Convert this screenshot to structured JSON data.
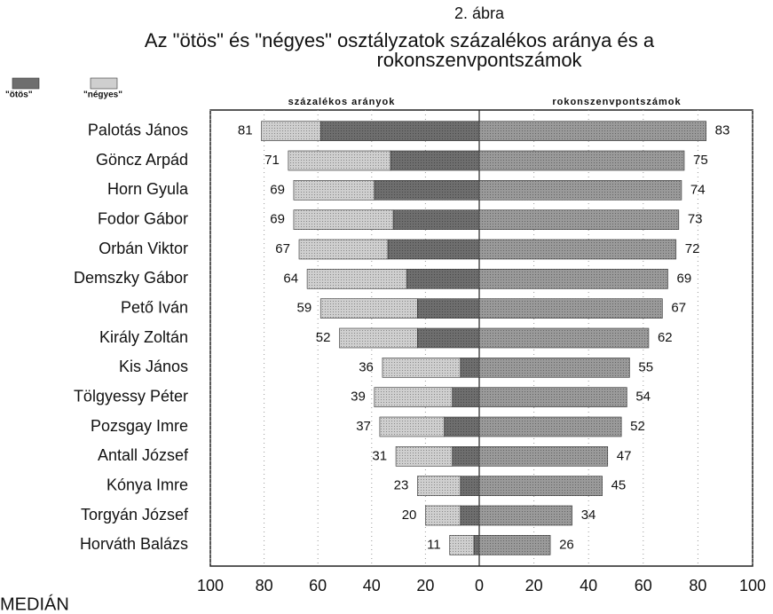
{
  "chart_data": {
    "type": "diverging_bar",
    "figure_label": "2. ábra",
    "title": [
      "Az \"ötös\" és \"négyes\" osztályzatok százalékos aránya és a",
      "rokonszenvpontszámok"
    ],
    "left_header": "százalékos arányok",
    "right_header": "rokonszenvpontszámok",
    "footer": "MEDIÁN",
    "categories": [
      "Palotás János",
      "Göncz Arpád",
      "Horn Gyula",
      "Fodor Gábor",
      "Orbán Viktor",
      "Demszky Gábor",
      "Pető Iván",
      "Király Zoltán",
      "Kis János",
      "Tölgyessy Péter",
      "Pozsgay Imre",
      "Antall József",
      "Kónya Imre",
      "Torgyán József",
      "Horváth Balázs"
    ],
    "left_series": [
      {
        "name": "\"ötös\"",
        "color": "#6e6e6e",
        "values": [
          59,
          33,
          39,
          32,
          34,
          27,
          23,
          23,
          7,
          10,
          13,
          10,
          7,
          7,
          2
        ]
      },
      {
        "name": "\"négyes\"",
        "color": "#cfcfcf",
        "values": [
          22,
          38,
          30,
          37,
          33,
          37,
          36,
          29,
          29,
          29,
          24,
          21,
          16,
          13,
          9
        ]
      }
    ],
    "left_totals": [
      81,
      71,
      69,
      69,
      67,
      64,
      59,
      52,
      36,
      39,
      37,
      31,
      23,
      20,
      11
    ],
    "right_series": {
      "color": "#9a9a9a",
      "values": [
        83,
        75,
        74,
        73,
        72,
        69,
        67,
        62,
        55,
        54,
        52,
        47,
        45,
        34,
        26
      ]
    },
    "left_xlim": [
      0,
      100
    ],
    "left_xticks": [
      100,
      80,
      60,
      40,
      20
    ],
    "right_xlim": [
      0,
      100
    ],
    "right_xticks": [
      0,
      20,
      40,
      60,
      80,
      100
    ],
    "grid": true
  }
}
